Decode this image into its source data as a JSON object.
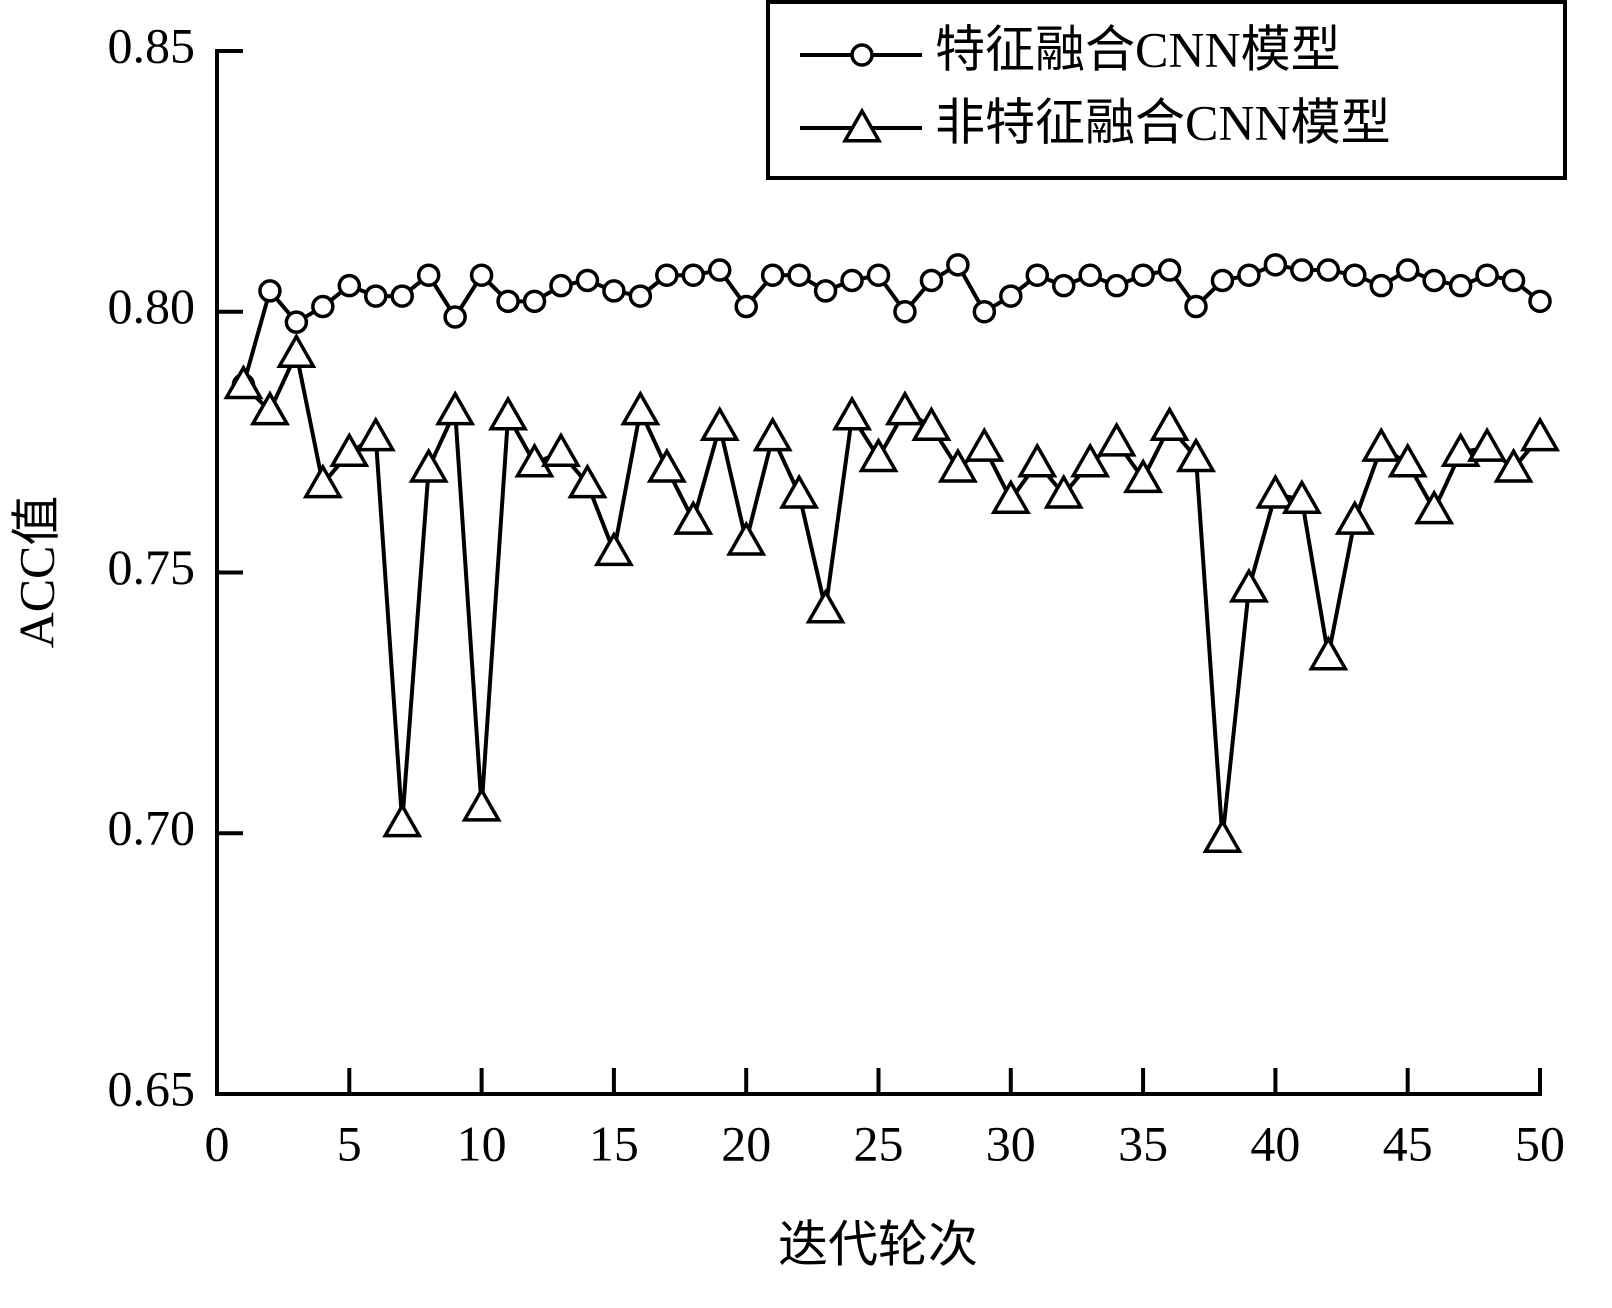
{
  "chart_data": {
    "type": "line",
    "x_label": "迭代轮次",
    "y_label": "ACC值",
    "x": [
      1,
      2,
      3,
      4,
      5,
      6,
      7,
      8,
      9,
      10,
      11,
      12,
      13,
      14,
      15,
      16,
      17,
      18,
      19,
      20,
      21,
      22,
      23,
      24,
      25,
      26,
      27,
      28,
      29,
      30,
      31,
      32,
      33,
      34,
      35,
      36,
      37,
      38,
      39,
      40,
      41,
      42,
      43,
      44,
      45,
      46,
      47,
      48,
      49,
      50
    ],
    "series": [
      {
        "name": "特征融合CNN模型",
        "color": "#000000",
        "marker": "circle",
        "values": [
          0.786,
          0.804,
          0.798,
          0.801,
          0.805,
          0.803,
          0.803,
          0.807,
          0.799,
          0.807,
          0.802,
          0.802,
          0.805,
          0.806,
          0.804,
          0.803,
          0.807,
          0.807,
          0.808,
          0.801,
          0.807,
          0.807,
          0.804,
          0.806,
          0.807,
          0.8,
          0.806,
          0.809,
          0.8,
          0.803,
          0.807,
          0.805,
          0.807,
          0.805,
          0.807,
          0.808,
          0.801,
          0.806,
          0.807,
          0.809,
          0.808,
          0.808,
          0.807,
          0.805,
          0.808,
          0.806,
          0.805,
          0.807,
          0.806,
          0.802
        ]
      },
      {
        "name": "非特征融合CNN模型",
        "color": "#000000",
        "marker": "triangle",
        "values": [
          0.786,
          0.781,
          0.792,
          0.767,
          0.773,
          0.776,
          0.702,
          0.77,
          0.781,
          0.705,
          0.78,
          0.771,
          0.773,
          0.767,
          0.754,
          0.781,
          0.77,
          0.76,
          0.778,
          0.756,
          0.776,
          0.765,
          0.743,
          0.78,
          0.772,
          0.781,
          0.778,
          0.77,
          0.774,
          0.764,
          0.771,
          0.765,
          0.771,
          0.775,
          0.768,
          0.778,
          0.772,
          0.699,
          0.747,
          0.765,
          0.764,
          0.734,
          0.76,
          0.774,
          0.771,
          0.762,
          0.773,
          0.774,
          0.77,
          0.776
        ]
      }
    ],
    "xlim": [
      0,
      50
    ],
    "xticks": [
      0,
      5,
      10,
      15,
      20,
      25,
      30,
      35,
      40,
      45,
      50
    ],
    "ylim": [
      0.65,
      0.85
    ],
    "yticks": [
      0.65,
      {
        "value": 0.7,
        "label": "0.70"
      },
      0.75,
      {
        "value": 0.8,
        "label": "0.80"
      },
      0.85
    ],
    "legend": "top-right"
  }
}
